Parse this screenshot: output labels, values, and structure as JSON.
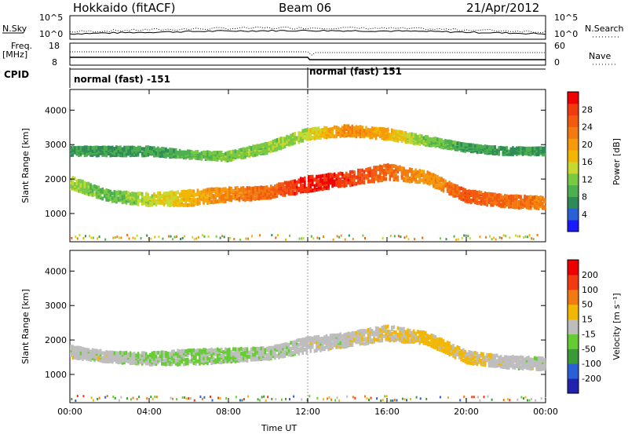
{
  "header": {
    "station": "Hokkaido (fitACF)",
    "beam": "Beam 06",
    "date": "21/Apr/2012"
  },
  "noise_panel": {
    "left_label": "N.Sky",
    "right_label": "N.Search",
    "ticks_left": [
      "10^5",
      "10^0"
    ],
    "ticks_right": [
      "10^5",
      "10^0"
    ]
  },
  "freq_panel": {
    "left_label_1": "Freq.",
    "left_label_2": "[MHz]",
    "right_label": "Nave",
    "ticks_left": [
      "18",
      "8"
    ],
    "ticks_right": [
      "60",
      "0"
    ]
  },
  "cpid_panel": {
    "label": "CPID",
    "segments": [
      "normal (fast) -151",
      "normal (fast) 151"
    ]
  },
  "x_axis": {
    "label": "Time UT",
    "ticks": [
      "00:00",
      "04:00",
      "08:00",
      "12:00",
      "16:00",
      "20:00",
      "00:00"
    ]
  },
  "power_panel": {
    "ylabel": "Slant Range [km]",
    "yticks": [
      "1000",
      "2000",
      "3000",
      "4000"
    ],
    "colorbar_label": "Power [dB]",
    "colorbar_ticks": [
      "28",
      "24",
      "20",
      "16",
      "12",
      "8",
      "4"
    ],
    "colors": [
      "#1a1aff",
      "#2a5fd6",
      "#2e8b57",
      "#4caf50",
      "#7ac943",
      "#c7d830",
      "#f2b705",
      "#f49a0b",
      "#f27a10",
      "#f25a10",
      "#f23a10",
      "#f00000"
    ]
  },
  "velocity_panel": {
    "ylabel": "Slant Range [km]",
    "yticks": [
      "1000",
      "2000",
      "3000",
      "4000"
    ],
    "colorbar_label": "Velocity [m s⁻¹]",
    "colorbar_ticks": [
      "200",
      "100",
      "50",
      "15",
      "-15",
      "-50",
      "-100",
      "-200"
    ],
    "colors": [
      "#2222b0",
      "#2a5fd6",
      "#3a9a3a",
      "#66cc33",
      "#bdbdbd",
      "#f2b705",
      "#f27a10",
      "#f23a10",
      "#ee0000"
    ]
  },
  "chart_data": [
    {
      "type": "heatmap",
      "title": "Power",
      "xlabel": "Time UT",
      "ylabel": "Slant Range [km]",
      "xlim_hours": [
        0,
        24
      ],
      "ylim_km": [
        180,
        4600
      ],
      "colorbar": {
        "label": "Power [dB]",
        "range": [
          0,
          32
        ]
      },
      "echo_bands": [
        {
          "t": [
            0,
            2,
            4,
            6,
            8,
            10,
            12,
            14,
            16,
            18,
            20,
            22,
            24
          ],
          "range_km": [
            1900,
            1500,
            1400,
            1450,
            1550,
            1600,
            1850,
            2000,
            2200,
            2050,
            1500,
            1350,
            1300
          ],
          "width_km": [
            350,
            300,
            350,
            450,
            400,
            350,
            450,
            400,
            450,
            350,
            350,
            350,
            350
          ],
          "power_db": [
            14,
            10,
            14,
            18,
            22,
            24,
            30,
            28,
            24,
            20,
            26,
            24,
            22
          ]
        },
        {
          "t": [
            4,
            6,
            8,
            10,
            12,
            14,
            16,
            18,
            20,
            22,
            24
          ],
          "range_km": [
            2800,
            2700,
            2650,
            2900,
            3300,
            3400,
            3300,
            3100,
            2900,
            2800,
            2800
          ],
          "width_km": [
            250,
            200,
            250,
            300,
            300,
            300,
            300,
            250,
            200,
            200,
            200
          ],
          "power_db": [
            8,
            10,
            12,
            12,
            14,
            22,
            18,
            12,
            8,
            8,
            8
          ]
        }
      ]
    },
    {
      "type": "heatmap",
      "title": "Velocity",
      "xlabel": "Time UT",
      "ylabel": "Slant Range [km]",
      "xlim_hours": [
        0,
        24
      ],
      "ylim_km": [
        180,
        4600
      ],
      "colorbar": {
        "label": "Velocity [m s⁻¹]",
        "range": [
          -200,
          200
        ]
      },
      "echo_bands": [
        {
          "t": [
            0,
            2,
            4,
            6,
            8,
            10,
            12,
            14,
            16,
            18,
            20,
            22,
            24
          ],
          "range_km": [
            1650,
            1500,
            1450,
            1500,
            1550,
            1600,
            1850,
            2000,
            2200,
            2050,
            1500,
            1350,
            1300
          ],
          "width_km": [
            350,
            300,
            350,
            450,
            400,
            350,
            450,
            400,
            450,
            350,
            350,
            350,
            350
          ],
          "velocity": [
            0,
            0,
            -20,
            -30,
            -20,
            -10,
            0,
            0,
            20,
            40,
            30,
            0,
            0
          ]
        }
      ]
    }
  ]
}
